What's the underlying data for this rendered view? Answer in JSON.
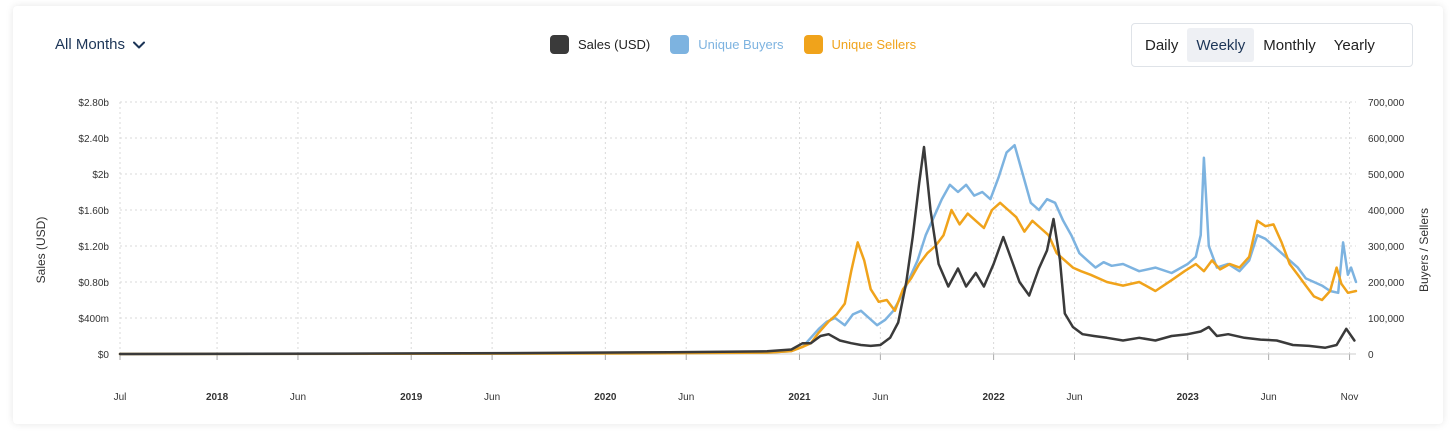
{
  "controls": {
    "months_label": "All Months",
    "periods": [
      {
        "label": "Daily",
        "active": false
      },
      {
        "label": "Weekly",
        "active": true
      },
      {
        "label": "Monthly",
        "active": false
      },
      {
        "label": "Yearly",
        "active": false
      }
    ]
  },
  "legend": [
    {
      "label": "Sales (USD)",
      "color": "#3a3a3a"
    },
    {
      "label": "Unique Buyers",
      "color": "#7db3e0"
    },
    {
      "label": "Unique Sellers",
      "color": "#f0a31b"
    }
  ],
  "chart_data": {
    "type": "line",
    "x_axis": {
      "unit": "months since Jan 2017",
      "range": [
        6,
        82.4
      ],
      "ticks": [
        {
          "value": 6,
          "label": "Jul",
          "bold": false
        },
        {
          "value": 12,
          "label": "2018",
          "bold": true
        },
        {
          "value": 17,
          "label": "Jun",
          "bold": false
        },
        {
          "value": 24,
          "label": "2019",
          "bold": true
        },
        {
          "value": 29,
          "label": "Jun",
          "bold": false
        },
        {
          "value": 36,
          "label": "2020",
          "bold": true
        },
        {
          "value": 41,
          "label": "Jun",
          "bold": false
        },
        {
          "value": 48,
          "label": "2021",
          "bold": true
        },
        {
          "value": 53,
          "label": "Jun",
          "bold": false
        },
        {
          "value": 60,
          "label": "2022",
          "bold": true
        },
        {
          "value": 65,
          "label": "Jun",
          "bold": false
        },
        {
          "value": 72,
          "label": "2023",
          "bold": true
        },
        {
          "value": 77,
          "label": "Jun",
          "bold": false
        },
        {
          "value": 82,
          "label": "Nov",
          "bold": false
        }
      ]
    },
    "y_left": {
      "label": "Sales (USD)",
      "range": [
        0,
        2.8
      ],
      "ticks": [
        {
          "value": 0,
          "label": "$0"
        },
        {
          "value": 0.4,
          "label": "$400m"
        },
        {
          "value": 0.8,
          "label": "$0.80b"
        },
        {
          "value": 1.2,
          "label": "$1.20b"
        },
        {
          "value": 1.6,
          "label": "$1.60b"
        },
        {
          "value": 2.0,
          "label": "$2b"
        },
        {
          "value": 2.4,
          "label": "$2.40b"
        },
        {
          "value": 2.8,
          "label": "$2.80b"
        }
      ]
    },
    "y_right": {
      "label": "Buyers / Sellers",
      "range": [
        0,
        700000
      ],
      "ticks": [
        {
          "value": 0,
          "label": "0"
        },
        {
          "value": 100000,
          "label": "100,000"
        },
        {
          "value": 200000,
          "label": "200,000"
        },
        {
          "value": 300000,
          "label": "300,000"
        },
        {
          "value": 400000,
          "label": "400,000"
        },
        {
          "value": 500000,
          "label": "500,000"
        },
        {
          "value": 600000,
          "label": "600,000"
        },
        {
          "value": 700000,
          "label": "700,000"
        }
      ]
    },
    "series": [
      {
        "name": "Sales (USD)",
        "axis": "left",
        "color": "#3a3a3a",
        "points": [
          [
            6,
            0
          ],
          [
            20,
            0.005
          ],
          [
            30,
            0.01
          ],
          [
            40,
            0.02
          ],
          [
            46,
            0.03
          ],
          [
            47.5,
            0.05
          ],
          [
            48.2,
            0.12
          ],
          [
            48.7,
            0.12
          ],
          [
            49.3,
            0.2
          ],
          [
            49.8,
            0.22
          ],
          [
            50.5,
            0.15
          ],
          [
            51.2,
            0.12
          ],
          [
            51.8,
            0.1
          ],
          [
            52.4,
            0.09
          ],
          [
            53,
            0.1
          ],
          [
            53.6,
            0.18
          ],
          [
            54.1,
            0.35
          ],
          [
            54.6,
            0.8
          ],
          [
            55,
            1.3
          ],
          [
            55.4,
            1.9
          ],
          [
            55.7,
            2.3
          ],
          [
            56.1,
            1.6
          ],
          [
            56.6,
            1.0
          ],
          [
            57.2,
            0.75
          ],
          [
            57.8,
            0.95
          ],
          [
            58.3,
            0.75
          ],
          [
            58.9,
            0.9
          ],
          [
            59.4,
            0.75
          ],
          [
            60,
            1.0
          ],
          [
            60.6,
            1.3
          ],
          [
            61.1,
            1.05
          ],
          [
            61.6,
            0.8
          ],
          [
            62.2,
            0.65
          ],
          [
            62.8,
            0.95
          ],
          [
            63.3,
            1.15
          ],
          [
            63.7,
            1.5
          ],
          [
            64.1,
            1.05
          ],
          [
            64.4,
            0.45
          ],
          [
            64.9,
            0.3
          ],
          [
            65.5,
            0.22
          ],
          [
            66.2,
            0.2
          ],
          [
            67,
            0.18
          ],
          [
            68,
            0.15
          ],
          [
            69,
            0.18
          ],
          [
            70,
            0.15
          ],
          [
            71,
            0.2
          ],
          [
            72,
            0.22
          ],
          [
            72.8,
            0.25
          ],
          [
            73.3,
            0.3
          ],
          [
            73.8,
            0.2
          ],
          [
            74.5,
            0.22
          ],
          [
            75.5,
            0.18
          ],
          [
            76.5,
            0.16
          ],
          [
            77.5,
            0.15
          ],
          [
            78.5,
            0.1
          ],
          [
            79.5,
            0.09
          ],
          [
            80.5,
            0.07
          ],
          [
            81.2,
            0.1
          ],
          [
            81.8,
            0.28
          ],
          [
            82.3,
            0.15
          ]
        ]
      },
      {
        "name": "Unique Buyers",
        "axis": "right",
        "color": "#7db3e0",
        "points": [
          [
            6,
            0
          ],
          [
            30,
            1000
          ],
          [
            40,
            2000
          ],
          [
            46,
            4000
          ],
          [
            47.5,
            8000
          ],
          [
            48.2,
            20000
          ],
          [
            48.7,
            45000
          ],
          [
            49.2,
            70000
          ],
          [
            49.7,
            90000
          ],
          [
            50.2,
            100000
          ],
          [
            50.8,
            80000
          ],
          [
            51.3,
            110000
          ],
          [
            51.8,
            120000
          ],
          [
            52.3,
            100000
          ],
          [
            52.8,
            80000
          ],
          [
            53.3,
            95000
          ],
          [
            53.8,
            120000
          ],
          [
            54.3,
            160000
          ],
          [
            54.8,
            210000
          ],
          [
            55.3,
            260000
          ],
          [
            55.8,
            330000
          ],
          [
            56.3,
            380000
          ],
          [
            56.8,
            430000
          ],
          [
            57.3,
            470000
          ],
          [
            57.8,
            450000
          ],
          [
            58.3,
            470000
          ],
          [
            58.8,
            440000
          ],
          [
            59.3,
            450000
          ],
          [
            59.8,
            430000
          ],
          [
            60.3,
            490000
          ],
          [
            60.8,
            560000
          ],
          [
            61.3,
            580000
          ],
          [
            61.8,
            500000
          ],
          [
            62.3,
            420000
          ],
          [
            62.8,
            400000
          ],
          [
            63.3,
            430000
          ],
          [
            63.8,
            420000
          ],
          [
            64.3,
            370000
          ],
          [
            64.8,
            330000
          ],
          [
            65.3,
            280000
          ],
          [
            65.8,
            260000
          ],
          [
            66.3,
            240000
          ],
          [
            66.8,
            255000
          ],
          [
            67.3,
            245000
          ],
          [
            68,
            250000
          ],
          [
            69,
            230000
          ],
          [
            70,
            240000
          ],
          [
            71,
            225000
          ],
          [
            72,
            250000
          ],
          [
            72.5,
            270000
          ],
          [
            72.8,
            330000
          ],
          [
            73,
            545000
          ],
          [
            73.3,
            300000
          ],
          [
            73.8,
            240000
          ],
          [
            74.5,
            250000
          ],
          [
            75.2,
            230000
          ],
          [
            75.8,
            260000
          ],
          [
            76.3,
            330000
          ],
          [
            76.8,
            320000
          ],
          [
            77.3,
            300000
          ],
          [
            77.8,
            280000
          ],
          [
            78.3,
            260000
          ],
          [
            78.8,
            240000
          ],
          [
            79.3,
            210000
          ],
          [
            79.8,
            200000
          ],
          [
            80.3,
            190000
          ],
          [
            80.8,
            175000
          ],
          [
            81.3,
            170000
          ],
          [
            81.6,
            310000
          ],
          [
            81.9,
            220000
          ],
          [
            82.1,
            240000
          ],
          [
            82.4,
            200000
          ]
        ]
      },
      {
        "name": "Unique Sellers",
        "axis": "right",
        "color": "#f0a31b",
        "points": [
          [
            6,
            0
          ],
          [
            30,
            1000
          ],
          [
            40,
            2000
          ],
          [
            46,
            4000
          ],
          [
            47.5,
            8000
          ],
          [
            48.2,
            20000
          ],
          [
            48.7,
            30000
          ],
          [
            49.2,
            60000
          ],
          [
            49.8,
            90000
          ],
          [
            50.3,
            110000
          ],
          [
            50.8,
            140000
          ],
          [
            51.2,
            230000
          ],
          [
            51.6,
            310000
          ],
          [
            52,
            260000
          ],
          [
            52.4,
            180000
          ],
          [
            52.9,
            145000
          ],
          [
            53.4,
            150000
          ],
          [
            53.9,
            120000
          ],
          [
            54.4,
            180000
          ],
          [
            54.9,
            210000
          ],
          [
            55.4,
            250000
          ],
          [
            55.9,
            280000
          ],
          [
            56.4,
            300000
          ],
          [
            56.9,
            330000
          ],
          [
            57.4,
            400000
          ],
          [
            57.9,
            360000
          ],
          [
            58.4,
            390000
          ],
          [
            58.9,
            370000
          ],
          [
            59.4,
            350000
          ],
          [
            59.9,
            400000
          ],
          [
            60.4,
            420000
          ],
          [
            60.9,
            400000
          ],
          [
            61.4,
            380000
          ],
          [
            61.9,
            340000
          ],
          [
            62.4,
            370000
          ],
          [
            62.9,
            350000
          ],
          [
            63.4,
            330000
          ],
          [
            63.9,
            280000
          ],
          [
            64.4,
            260000
          ],
          [
            64.9,
            240000
          ],
          [
            65.4,
            230000
          ],
          [
            66,
            220000
          ],
          [
            67,
            200000
          ],
          [
            68,
            190000
          ],
          [
            69,
            200000
          ],
          [
            70,
            175000
          ],
          [
            71,
            205000
          ],
          [
            71.8,
            230000
          ],
          [
            72.5,
            250000
          ],
          [
            73,
            230000
          ],
          [
            73.5,
            260000
          ],
          [
            74,
            235000
          ],
          [
            74.6,
            250000
          ],
          [
            75.2,
            240000
          ],
          [
            75.8,
            270000
          ],
          [
            76.3,
            370000
          ],
          [
            76.8,
            355000
          ],
          [
            77.3,
            360000
          ],
          [
            77.8,
            310000
          ],
          [
            78.3,
            250000
          ],
          [
            78.8,
            220000
          ],
          [
            79.3,
            190000
          ],
          [
            79.8,
            160000
          ],
          [
            80.3,
            150000
          ],
          [
            80.8,
            175000
          ],
          [
            81.2,
            240000
          ],
          [
            81.5,
            195000
          ],
          [
            81.9,
            170000
          ],
          [
            82.4,
            175000
          ]
        ]
      }
    ]
  }
}
